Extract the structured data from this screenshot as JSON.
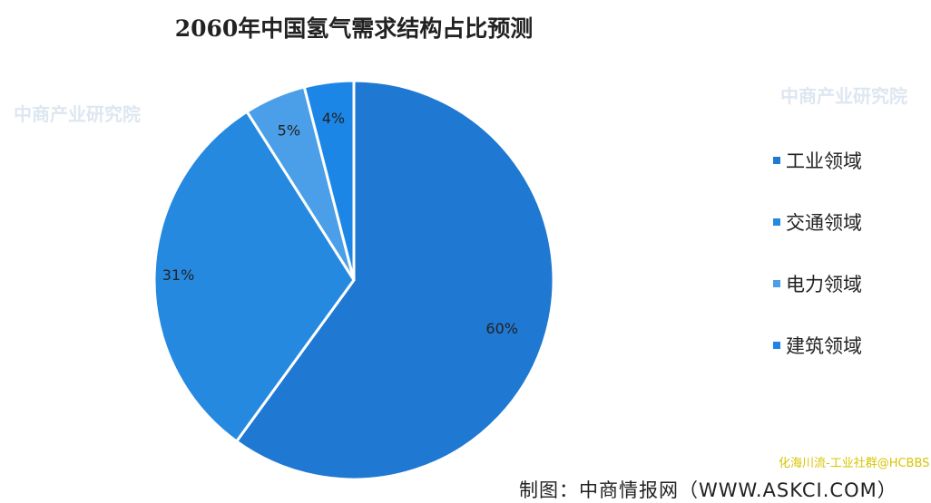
{
  "chart_data": {
    "type": "pie",
    "title": "2060年中国氢气需求结构占比预测",
    "categories": [
      "工业领域",
      "交通领域",
      "电力领域",
      "建筑领域"
    ],
    "values": [
      60,
      31,
      5,
      4
    ],
    "labels": [
      "60%",
      "31%",
      "5%",
      "4%"
    ],
    "colors": [
      "#1f78d2",
      "#2689e0",
      "#4a9fe8",
      "#1b86e6"
    ],
    "legend_position": "right",
    "start_angle": "top, clockwise"
  },
  "source": "制图：中商情报网（WWW.ASKCI.COM）",
  "overlay_text": "化海川流-工业社群@HCBBS",
  "watermark": "中商产业研究院"
}
